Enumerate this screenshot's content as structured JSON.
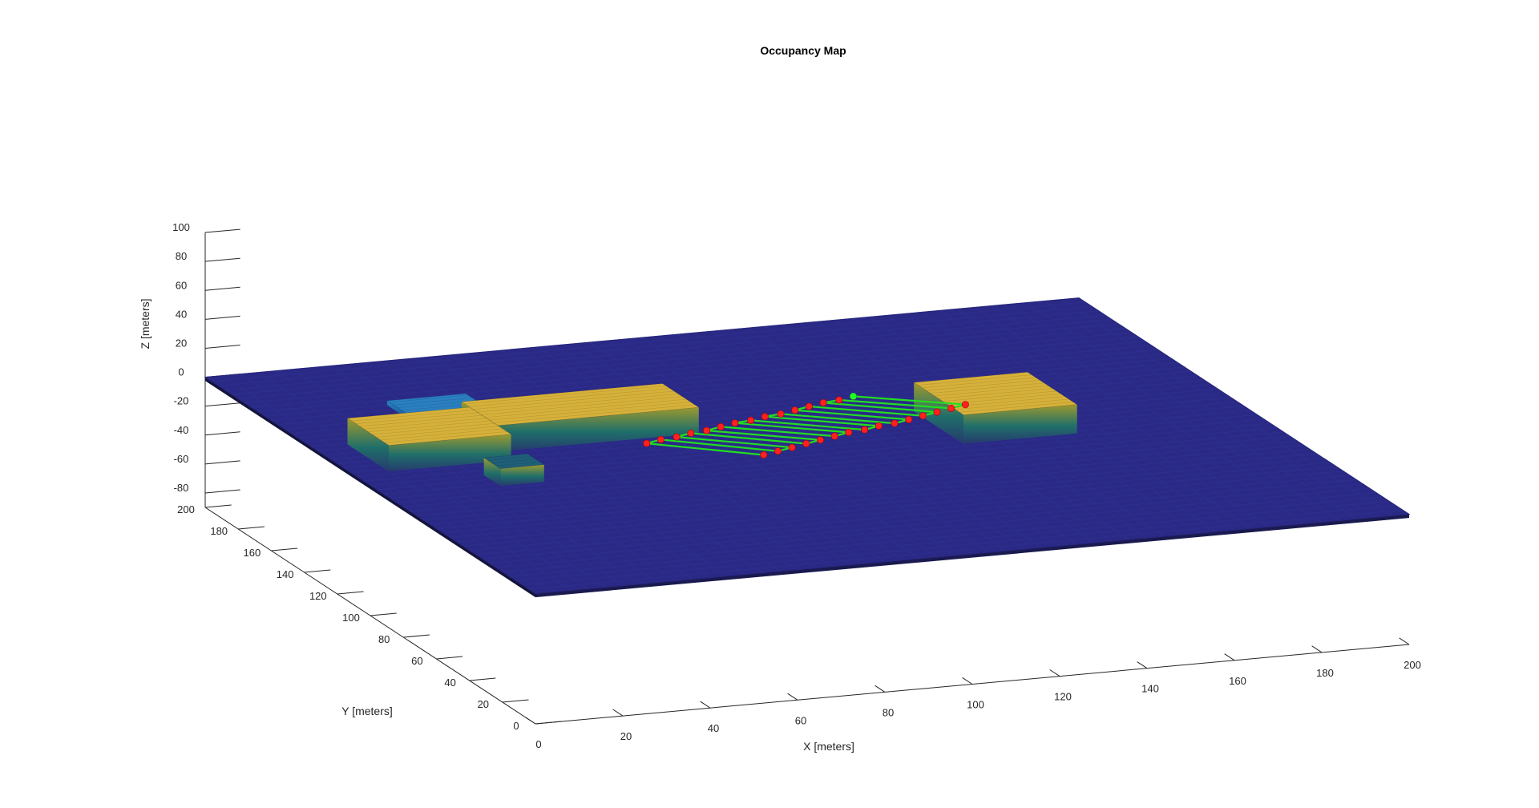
{
  "chart_data": {
    "type": "3d-surface-with-path",
    "title": "Occupancy Map",
    "xlabel": "X [meters]",
    "ylabel": "Y [meters]",
    "zlabel": "Z [meters]",
    "xlim": [
      0,
      200
    ],
    "ylim": [
      0,
      200
    ],
    "zlim": [
      -90,
      100
    ],
    "xticks": [
      "0",
      "20",
      "40",
      "60",
      "80",
      "100",
      "120",
      "140",
      "160",
      "180",
      "200"
    ],
    "yticks": [
      "0",
      "20",
      "40",
      "60",
      "80",
      "100",
      "120",
      "140",
      "160",
      "180",
      "200"
    ],
    "zticks": [
      "-80",
      "-60",
      "-40",
      "-20",
      "0",
      "20",
      "40",
      "60",
      "80",
      "100"
    ],
    "colors": {
      "ground": "#2a2a86",
      "obstacle_low": "#1f5f78",
      "obstacle_high": "#d6b13a",
      "obstacle_blue": "#2a7fc0",
      "path_line": "#22dd22",
      "waypoint": "#ff2020",
      "start_point": "#22ff22"
    },
    "ground_plane": {
      "z": 0
    },
    "obstacles": [
      {
        "name": "left-long-block",
        "x": [
          8,
          36
        ],
        "y": [
          110,
          135
        ],
        "height": 18,
        "color": "obstacle_high"
      },
      {
        "name": "center-long-block",
        "x": [
          36,
          82
        ],
        "y": [
          118,
          140
        ],
        "height": 18,
        "color": "obstacle_high"
      },
      {
        "name": "right-block",
        "x": [
          132,
          158
        ],
        "y": [
          90,
          120
        ],
        "height": 20,
        "color": "obstacle_high"
      },
      {
        "name": "small-front-block",
        "x": [
          26,
          36
        ],
        "y": [
          90,
          100
        ],
        "height": 12,
        "color": "obstacle_low"
      },
      {
        "name": "back-blue-block",
        "x": [
          28,
          46
        ],
        "y": [
          150,
          164
        ],
        "height": 3,
        "color": "obstacle_blue"
      }
    ],
    "path": {
      "name": "coverage-path",
      "points": [
        [
          120,
          125,
          10
        ],
        [
          140,
          110,
          10
        ],
        [
          136,
          108,
          10
        ],
        [
          116,
          123,
          10
        ],
        [
          112,
          122,
          10
        ],
        [
          132,
          106,
          10
        ],
        [
          128,
          104,
          10
        ],
        [
          108,
          120,
          10
        ],
        [
          104,
          118,
          10
        ],
        [
          124,
          102,
          10
        ],
        [
          120,
          100,
          10
        ],
        [
          100,
          116,
          10
        ],
        [
          96,
          115,
          10
        ],
        [
          116,
          99,
          10
        ],
        [
          112,
          97,
          10
        ],
        [
          92,
          113,
          10
        ],
        [
          88,
          112,
          10
        ],
        [
          108,
          96,
          10
        ],
        [
          104,
          94,
          10
        ],
        [
          84,
          110,
          10
        ],
        [
          80,
          108,
          10
        ],
        [
          100,
          92,
          10
        ],
        [
          96,
          90,
          10
        ],
        [
          76,
          107,
          10
        ],
        [
          72,
          105,
          10
        ],
        [
          92,
          88,
          10
        ],
        [
          88,
          86,
          10
        ],
        [
          68,
          104,
          10
        ],
        [
          64,
          102,
          10
        ],
        [
          84,
          84,
          10
        ]
      ],
      "start_index": 0
    }
  }
}
